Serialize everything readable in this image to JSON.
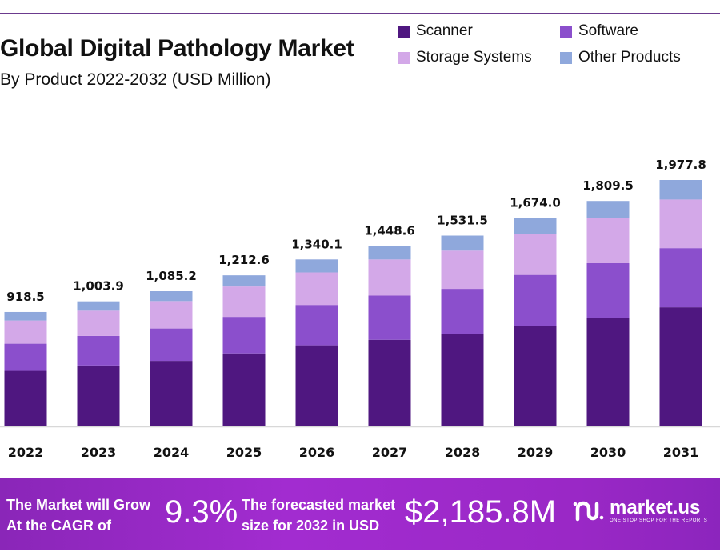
{
  "header": {
    "title": "Global Digital Pathology Market",
    "subtitle": "By Product  2022-2032 (USD Million)"
  },
  "chart_data": {
    "type": "bar",
    "stacked": true,
    "categories": [
      "2022",
      "2023",
      "2024",
      "2025",
      "2026",
      "2027",
      "2028",
      "2029",
      "2030",
      "2031"
    ],
    "series": [
      {
        "name": "Scanner",
        "color": "#4f1780",
        "values": [
          446,
          489,
          526,
          586,
          651,
          695,
          739,
          807,
          871,
          956
        ]
      },
      {
        "name": "Software",
        "color": "#8b4fcc",
        "values": [
          218,
          237,
          260,
          293,
          324,
          355,
          365,
          409,
          439,
          475
        ]
      },
      {
        "name": "Storage Systems",
        "color": "#d3a8e8",
        "values": [
          186,
          203,
          220,
          244,
          261,
          290,
          307,
          329,
          360,
          390
        ]
      },
      {
        "name": "Other Products",
        "color": "#8fa8dc",
        "values": [
          68.5,
          74.9,
          79.2,
          89.6,
          104.1,
          108.6,
          120.5,
          129.0,
          139.5,
          156.8
        ]
      }
    ],
    "totals_labels": [
      "918.5",
      "1,003.9",
      "1,085.2",
      "1,212.6",
      "1,340.1",
      "1,448.6",
      "1,531.5",
      "1,674.0",
      "1,809.5",
      "1,977.8"
    ],
    "ylim": [
      0,
      2000
    ],
    "grid": false,
    "legend_position": "top-right"
  },
  "banner": {
    "line1": "The Market will Grow",
    "line2": "At the CAGR of",
    "cagr": "9.3%",
    "forecast_line1": "The forecasted market",
    "forecast_line2": "size for 2032 in USD",
    "forecast_value": "$2,185.8M",
    "logo_text": "market.us",
    "logo_tagline": "ONE STOP SHOP FOR THE REPORTS"
  }
}
